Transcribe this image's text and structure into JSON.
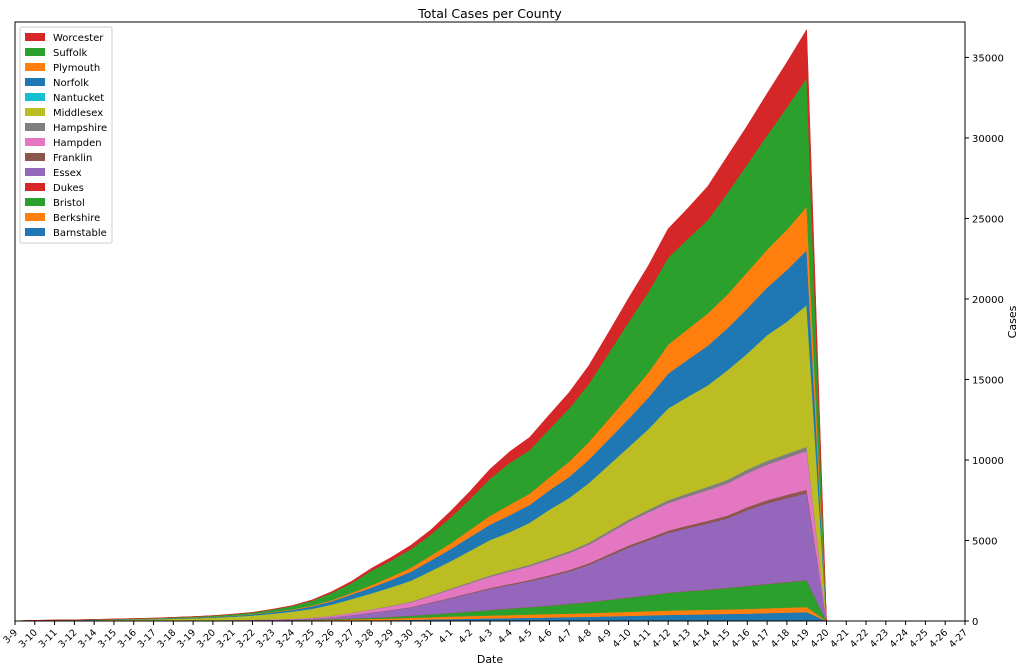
{
  "chart_data": {
    "type": "area",
    "stacked": true,
    "title": "Total Cases per County",
    "xlabel": "Date",
    "ylabel": "Cases",
    "y_axis_side": "right",
    "ylim": [
      0,
      37200
    ],
    "y_ticks": [
      0,
      5000,
      10000,
      15000,
      20000,
      25000,
      30000,
      35000
    ],
    "legend_position": "upper-left",
    "grid": false,
    "x": [
      "3-9",
      "3-10",
      "3-11",
      "3-12",
      "3-14",
      "3-15",
      "3-16",
      "3-17",
      "3-18",
      "3-19",
      "3-20",
      "3-21",
      "3-22",
      "3-23",
      "3-24",
      "3-25",
      "3-26",
      "3-27",
      "3-28",
      "3-29",
      "3-30",
      "3-31",
      "4-1",
      "4-2",
      "4-3",
      "4-4",
      "4-5",
      "4-6",
      "4-7",
      "4-8",
      "4-9",
      "4-10",
      "4-11",
      "4-12",
      "4-13",
      "4-14",
      "4-15",
      "4-16",
      "4-17",
      "4-18",
      "4-19",
      "4-20",
      "4-21",
      "4-22",
      "4-23",
      "4-24",
      "4-25",
      "4-26",
      "4-27"
    ],
    "series": [
      {
        "name": "Barnstable",
        "color": "#1f77b4",
        "values": [
          0,
          0,
          0,
          0,
          1,
          1,
          2,
          3,
          4,
          5,
          6,
          8,
          10,
          12,
          15,
          20,
          25,
          35,
          45,
          60,
          80,
          100,
          120,
          140,
          160,
          180,
          200,
          220,
          240,
          260,
          290,
          320,
          350,
          380,
          400,
          420,
          440,
          460,
          490,
          520,
          550,
          0,
          0,
          0,
          0,
          0,
          0,
          0,
          0
        ]
      },
      {
        "name": "Berkshire",
        "color": "#ff7f0e",
        "values": [
          0,
          1,
          1,
          2,
          4,
          6,
          8,
          10,
          12,
          14,
          16,
          18,
          20,
          24,
          30,
          40,
          50,
          65,
          80,
          100,
          120,
          140,
          160,
          170,
          180,
          190,
          200,
          210,
          220,
          230,
          240,
          250,
          260,
          270,
          275,
          280,
          285,
          290,
          300,
          310,
          320,
          0,
          0,
          0,
          0,
          0,
          0,
          0,
          0
        ]
      },
      {
        "name": "Bristol",
        "color": "#2ca02c",
        "values": [
          0,
          0,
          0,
          0,
          0,
          1,
          2,
          3,
          4,
          6,
          8,
          10,
          12,
          15,
          20,
          30,
          45,
          60,
          80,
          100,
          130,
          170,
          220,
          280,
          340,
          400,
          460,
          520,
          600,
          680,
          780,
          880,
          980,
          1100,
          1180,
          1240,
          1330,
          1420,
          1500,
          1580,
          1650,
          0,
          0,
          0,
          0,
          0,
          0,
          0,
          0
        ]
      },
      {
        "name": "Dukes",
        "color": "#d62728",
        "values": [
          0,
          0,
          0,
          0,
          0,
          0,
          0,
          0,
          0,
          0,
          0,
          0,
          0,
          0,
          1,
          1,
          1,
          2,
          3,
          4,
          5,
          6,
          7,
          8,
          8,
          9,
          10,
          10,
          11,
          11,
          12,
          12,
          13,
          13,
          14,
          14,
          15,
          15,
          16,
          16,
          17,
          0,
          0,
          0,
          0,
          0,
          0,
          0,
          0
        ]
      },
      {
        "name": "Essex",
        "color": "#9467bd",
        "values": [
          0,
          0,
          0,
          0,
          1,
          2,
          3,
          4,
          6,
          8,
          10,
          14,
          18,
          22,
          30,
          50,
          100,
          200,
          300,
          400,
          500,
          700,
          900,
          1100,
          1300,
          1450,
          1600,
          1800,
          2000,
          2300,
          2700,
          3100,
          3400,
          3700,
          3900,
          4100,
          4300,
          4700,
          5000,
          5200,
          5400,
          0,
          0,
          0,
          0,
          0,
          0,
          0,
          0
        ]
      },
      {
        "name": "Franklin",
        "color": "#8c564b",
        "values": [
          0,
          0,
          0,
          0,
          0,
          0,
          0,
          0,
          1,
          1,
          2,
          2,
          3,
          4,
          5,
          7,
          10,
          14,
          18,
          22,
          28,
          34,
          40,
          50,
          60,
          70,
          80,
          90,
          100,
          110,
          120,
          130,
          140,
          150,
          160,
          170,
          180,
          190,
          200,
          210,
          220,
          0,
          0,
          0,
          0,
          0,
          0,
          0,
          0
        ]
      },
      {
        "name": "Hampden",
        "color": "#e377c2",
        "values": [
          0,
          0,
          0,
          0,
          0,
          1,
          2,
          3,
          5,
          7,
          9,
          12,
          15,
          20,
          30,
          50,
          80,
          120,
          170,
          230,
          300,
          400,
          500,
          600,
          700,
          780,
          850,
          950,
          1050,
          1150,
          1300,
          1450,
          1600,
          1700,
          1800,
          1900,
          2000,
          2100,
          2200,
          2300,
          2400,
          0,
          0,
          0,
          0,
          0,
          0,
          0,
          0
        ]
      },
      {
        "name": "Hampshire",
        "color": "#7f7f7f",
        "values": [
          0,
          0,
          0,
          0,
          0,
          0,
          1,
          1,
          2,
          2,
          3,
          4,
          5,
          6,
          8,
          10,
          14,
          18,
          22,
          30,
          40,
          50,
          60,
          70,
          80,
          90,
          100,
          110,
          120,
          130,
          140,
          150,
          170,
          190,
          200,
          210,
          220,
          230,
          240,
          250,
          260,
          0,
          0,
          0,
          0,
          0,
          0,
          0,
          0
        ]
      },
      {
        "name": "Middlesex",
        "color": "#bcbd22",
        "values": [
          2,
          30,
          40,
          45,
          60,
          70,
          80,
          90,
          110,
          130,
          160,
          200,
          260,
          350,
          450,
          550,
          700,
          850,
          1000,
          1150,
          1300,
          1500,
          1700,
          1950,
          2200,
          2350,
          2600,
          3000,
          3300,
          3700,
          4100,
          4500,
          5000,
          5700,
          6000,
          6300,
          6800,
          7200,
          7800,
          8200,
          8800,
          0,
          0,
          0,
          0,
          0,
          0,
          0,
          0
        ]
      },
      {
        "name": "Nantucket",
        "color": "#17becf",
        "values": [
          0,
          0,
          0,
          0,
          0,
          0,
          0,
          0,
          0,
          0,
          0,
          0,
          0,
          0,
          0,
          0,
          1,
          1,
          1,
          2,
          2,
          3,
          3,
          4,
          4,
          5,
          5,
          6,
          6,
          7,
          7,
          8,
          8,
          9,
          9,
          9,
          10,
          10,
          10,
          11,
          11,
          0,
          0,
          0,
          0,
          0,
          0,
          0,
          0
        ]
      },
      {
        "name": "Norfolk",
        "color": "#1f77b4",
        "values": [
          1,
          8,
          10,
          12,
          15,
          18,
          22,
          26,
          30,
          35,
          40,
          50,
          60,
          80,
          100,
          150,
          200,
          280,
          350,
          450,
          550,
          650,
          750,
          850,
          950,
          1050,
          1100,
          1200,
          1300,
          1450,
          1600,
          1750,
          1950,
          2150,
          2300,
          2450,
          2600,
          2800,
          2950,
          3200,
          3400,
          0,
          0,
          0,
          0,
          0,
          0,
          0,
          0
        ]
      },
      {
        "name": "Plymouth",
        "color": "#ff7f0e",
        "values": [
          0,
          1,
          2,
          3,
          4,
          5,
          6,
          8,
          10,
          12,
          14,
          17,
          20,
          25,
          35,
          50,
          70,
          100,
          150,
          200,
          250,
          300,
          350,
          450,
          550,
          650,
          700,
          800,
          950,
          1100,
          1250,
          1400,
          1550,
          1800,
          1900,
          2000,
          2100,
          2250,
          2350,
          2500,
          2700,
          0,
          0,
          0,
          0,
          0,
          0,
          0,
          0
        ]
      },
      {
        "name": "Suffolk",
        "color": "#2ca02c",
        "values": [
          0,
          5,
          8,
          10,
          15,
          20,
          25,
          30,
          40,
          50,
          60,
          80,
          100,
          150,
          200,
          300,
          450,
          600,
          900,
          1000,
          1150,
          1300,
          1600,
          1900,
          2300,
          2600,
          2700,
          3000,
          3300,
          3600,
          4100,
          4600,
          5000,
          5400,
          5600,
          5800,
          6300,
          6700,
          7100,
          7600,
          8000,
          0,
          0,
          0,
          0,
          0,
          0,
          0,
          0
        ]
      },
      {
        "name": "Worcester",
        "color": "#d62728",
        "values": [
          0,
          0,
          0,
          0,
          1,
          2,
          3,
          4,
          6,
          8,
          10,
          14,
          18,
          25,
          35,
          50,
          80,
          120,
          150,
          200,
          250,
          300,
          400,
          500,
          600,
          700,
          800,
          900,
          1000,
          1150,
          1300,
          1500,
          1650,
          1800,
          1900,
          2100,
          2300,
          2400,
          2600,
          2800,
          3000,
          0,
          0,
          0,
          0,
          0,
          0,
          0,
          0
        ]
      }
    ]
  }
}
